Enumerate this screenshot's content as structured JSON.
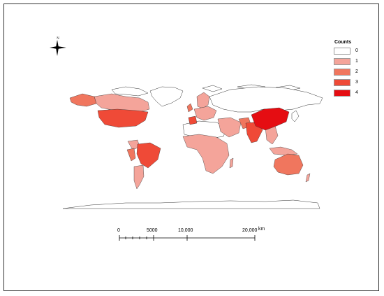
{
  "legend": {
    "title": "Counts",
    "items": [
      {
        "label": "0",
        "color": "#ffffff"
      },
      {
        "label": "1",
        "color": "#f4a49a"
      },
      {
        "label": "2",
        "color": "#f0765e"
      },
      {
        "label": "3",
        "color": "#ef4a37"
      },
      {
        "label": "4",
        "color": "#e50d12"
      }
    ]
  },
  "north_arrow": {
    "label": "N"
  },
  "scale_bar": {
    "ticks": [
      "0",
      "5000",
      "10,000",
      "20,000"
    ],
    "unit": "km"
  }
}
